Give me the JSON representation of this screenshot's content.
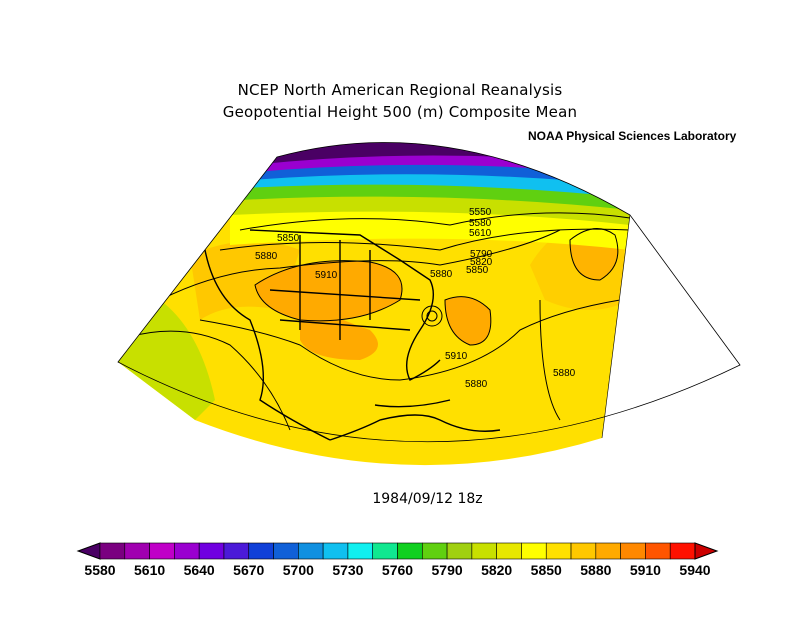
{
  "title_line1": "NCEP North American Regional Reanalysis",
  "title_line2": "Geopotential Height 500 (m) Composite Mean",
  "credit": "NOAA Physical Sciences Laboratory",
  "datestamp": "1984/09/12 18z",
  "contour_labels": [
    {
      "id": "c5550",
      "text": "5550"
    },
    {
      "id": "c5580",
      "text": "5580"
    },
    {
      "id": "c5610",
      "text": "5610"
    },
    {
      "id": "c5790",
      "text": "5790"
    },
    {
      "id": "c5820",
      "text": "5820"
    },
    {
      "id": "c5850a",
      "text": "5850"
    },
    {
      "id": "c5880a",
      "text": "5880"
    },
    {
      "id": "c5850b",
      "text": "5850"
    },
    {
      "id": "c5880b",
      "text": "5880"
    },
    {
      "id": "c5910a",
      "text": "5910"
    },
    {
      "id": "c5910b",
      "text": "5910"
    },
    {
      "id": "c5880c",
      "text": "5880"
    },
    {
      "id": "c5880d",
      "text": "5880"
    }
  ],
  "colorbar": {
    "ticks": [
      "5580",
      "5610",
      "5640",
      "5670",
      "5700",
      "5730",
      "5760",
      "5790",
      "5820",
      "5850",
      "5880",
      "5910",
      "5940"
    ],
    "colors": [
      "#4a0064",
      "#7a0080",
      "#a000b0",
      "#c000c8",
      "#9a00d0",
      "#7000e0",
      "#4b1ad8",
      "#1040d8",
      "#1060d8",
      "#1090e0",
      "#10c0f0",
      "#10f0f0",
      "#10e890",
      "#10d020",
      "#60d010",
      "#a0d010",
      "#c8e000",
      "#e8e800",
      "#ffff00",
      "#ffe000",
      "#ffc800",
      "#ffaa00",
      "#ff8800",
      "#ff5500",
      "#ff1100",
      "#cc0000"
    ],
    "colors_note": "colors listed from lowest (left arrow) to highest (right arrow)"
  }
}
